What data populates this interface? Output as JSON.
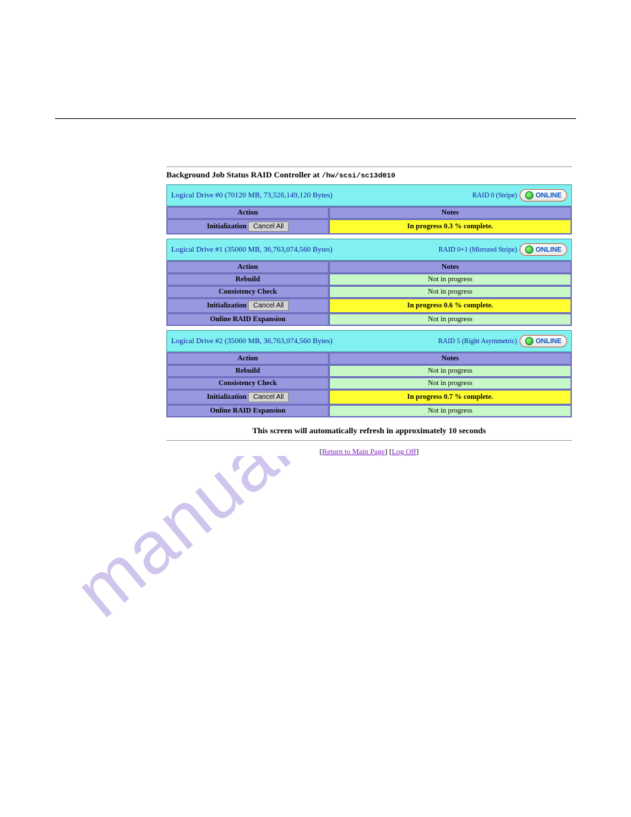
{
  "watermark": "manualshive.com",
  "heading_prefix": "Background Job Status RAID Controller at ",
  "heading_path": "/hw/scsi/sc13d010",
  "refresh_text": "This screen will automatically refresh in approximately 10 seconds",
  "links": {
    "return": "Return to Main Page",
    "logoff": "Log Off"
  },
  "cancel_label": "Cancel All",
  "action_header": "Action",
  "notes_header": "Notes",
  "online_label": "ONLINE",
  "drives": [
    {
      "title": "Logical Drive #0 (70120 MB, 73,526,149,120 Bytes)",
      "raid": "RAID 0 (Stripe)",
      "rows": [
        {
          "action": "Initialization",
          "has_cancel": true,
          "notes": "In progress 0.3 % complete.",
          "notes_style": "yellow"
        }
      ]
    },
    {
      "title": "Logical Drive #1 (35060 MB, 36,763,074,560 Bytes)",
      "raid": "RAID 0+1 (Mirrored Stripe)",
      "rows": [
        {
          "action": "Rebuild",
          "has_cancel": false,
          "notes": "Not in progress",
          "notes_style": "green"
        },
        {
          "action": "Consistency Check",
          "has_cancel": false,
          "notes": "Not in progress",
          "notes_style": "green"
        },
        {
          "action": "Initialization",
          "has_cancel": true,
          "notes": "In progress 0.6 % complete.",
          "notes_style": "yellow"
        },
        {
          "action": "Online RAID Expansion",
          "has_cancel": false,
          "notes": "Not in progress",
          "notes_style": "green"
        }
      ]
    },
    {
      "title": "Logical Drive #2 (35060 MB, 36,763,074,560 Bytes)",
      "raid": "RAID 5 (Right Asymmetric)",
      "rows": [
        {
          "action": "Rebuild",
          "has_cancel": false,
          "notes": "Not in progress",
          "notes_style": "green"
        },
        {
          "action": "Consistency Check",
          "has_cancel": false,
          "notes": "Not in progress",
          "notes_style": "green"
        },
        {
          "action": "Initialization",
          "has_cancel": true,
          "notes": "In progress 0.7 % complete.",
          "notes_style": "yellow"
        },
        {
          "action": "Online RAID Expansion",
          "has_cancel": false,
          "notes": "Not in progress",
          "notes_style": "green"
        }
      ]
    }
  ],
  "colors": {
    "header_bg": "#80f0f0",
    "violet": "#9898e0",
    "green": "#c8f8c8",
    "yellow": "#ffff30"
  }
}
